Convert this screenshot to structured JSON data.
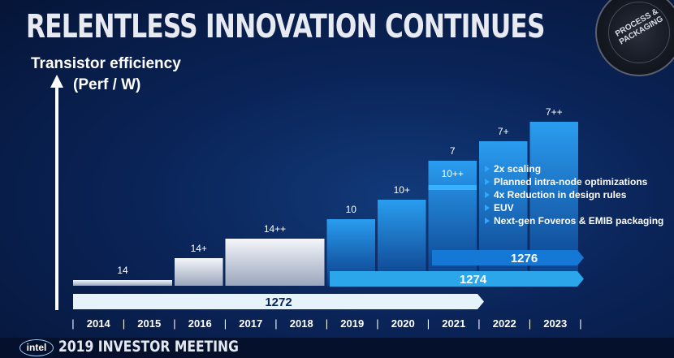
{
  "header": {
    "title": "RELENTLESS INNOVATION CONTINUES",
    "badge": "PROCESS & PACKAGING"
  },
  "footer": {
    "logo": "intel",
    "event": "2019 INVESTOR MEETING"
  },
  "chart_data": {
    "type": "bar",
    "ylabel_line1": "Transistor efficiency",
    "ylabel_line2": "(Perf / W)",
    "years": [
      "2014",
      "2015",
      "2016",
      "2017",
      "2018",
      "2019",
      "2020",
      "2021",
      "2022",
      "2023"
    ],
    "nodes": [
      {
        "label": "14",
        "start": 2014,
        "end": 2015,
        "level": 1
      },
      {
        "label": "14+",
        "start": 2016,
        "end": 2016,
        "level": 2
      },
      {
        "label": "14++",
        "start": 2017,
        "end": 2018,
        "level": 3
      },
      {
        "label": "10",
        "start": 2019,
        "end": 2019,
        "level": 4
      },
      {
        "label": "10+",
        "start": 2020,
        "end": 2020,
        "level": 5
      },
      {
        "label": "10++",
        "start": 2021,
        "end": 2021,
        "level": 6
      },
      {
        "label": "7",
        "start": 2021,
        "end": 2021,
        "level": 7
      },
      {
        "label": "7+",
        "start": 2022,
        "end": 2022,
        "level": 8
      },
      {
        "label": "7++",
        "start": 2023,
        "end": 2023,
        "level": 9
      }
    ],
    "roadmaps": [
      {
        "label": "1272",
        "start": 2014,
        "end": 2021,
        "color": "#e6f3fb"
      },
      {
        "label": "1274",
        "start": 2019,
        "end": 2023,
        "color": "#2ba6ea"
      },
      {
        "label": "1276",
        "start": 2021,
        "end": 2023,
        "color": "#1478d4"
      }
    ],
    "bullets": [
      "2x scaling",
      "Planned intra-node optimizations",
      "4x Reduction in design rules",
      "EUV",
      "Next-gen Foveros & EMIB packaging"
    ]
  }
}
